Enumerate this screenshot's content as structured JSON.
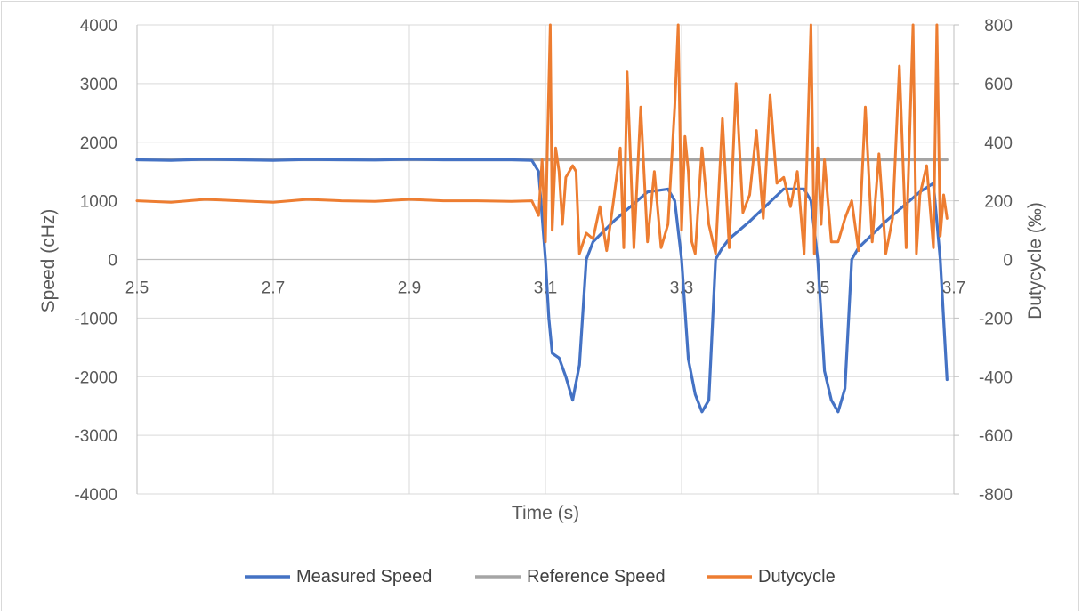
{
  "chart_data": {
    "type": "line",
    "title": "",
    "xlabel": "Time (s)",
    "ylabel": "Speed (cHz)",
    "y2label": "Dutycycle (‰)",
    "xlim": [
      2.5,
      3.7
    ],
    "ylim": [
      -4000,
      4000
    ],
    "y2lim": [
      -800,
      800
    ],
    "x_ticks": [
      "2.5",
      "2.7",
      "2.9",
      "3.1",
      "3.3",
      "3.5",
      "3.7"
    ],
    "y_ticks": [
      "4000",
      "3000",
      "2000",
      "1000",
      "0",
      "-1000",
      "-2000",
      "-3000",
      "-4000"
    ],
    "y2_ticks": [
      "800",
      "600",
      "400",
      "200",
      "0",
      "-200",
      "-400",
      "-600",
      "-800"
    ],
    "grid": true,
    "legend_position": "bottom",
    "series": [
      {
        "name": "Measured Speed",
        "axis": "left",
        "color": "#4472C4",
        "x": [
          2.5,
          2.55,
          2.6,
          2.65,
          2.7,
          2.75,
          2.8,
          2.85,
          2.9,
          2.95,
          3.0,
          3.05,
          3.08,
          3.09,
          3.1,
          3.105,
          3.11,
          3.12,
          3.13,
          3.14,
          3.15,
          3.16,
          3.17,
          3.2,
          3.25,
          3.28,
          3.29,
          3.3,
          3.31,
          3.32,
          3.33,
          3.34,
          3.35,
          3.36,
          3.37,
          3.4,
          3.45,
          3.48,
          3.49,
          3.5,
          3.51,
          3.52,
          3.53,
          3.54,
          3.55,
          3.56,
          3.6,
          3.65,
          3.67,
          3.68,
          3.69
        ],
        "y": [
          1700,
          1690,
          1710,
          1700,
          1690,
          1705,
          1700,
          1695,
          1710,
          1700,
          1700,
          1700,
          1690,
          1500,
          0,
          -1000,
          -1600,
          -1680,
          -2000,
          -2400,
          -1800,
          0,
          300,
          650,
          1150,
          1200,
          1000,
          0,
          -1700,
          -2300,
          -2600,
          -2400,
          0,
          200,
          350,
          650,
          1200,
          1200,
          1000,
          0,
          -1900,
          -2400,
          -2600,
          -2200,
          0,
          200,
          650,
          1150,
          1300,
          0,
          -2050
        ]
      },
      {
        "name": "Reference Speed",
        "axis": "left",
        "color": "#A5A5A5",
        "x": [
          2.5,
          3.69
        ],
        "y": [
          1700,
          1700
        ]
      },
      {
        "name": "Dutycycle",
        "axis": "right",
        "color": "#ED7D31",
        "x": [
          2.5,
          2.55,
          2.6,
          2.65,
          2.7,
          2.75,
          2.8,
          2.85,
          2.9,
          2.95,
          3.0,
          3.05,
          3.08,
          3.09,
          3.095,
          3.1,
          3.103,
          3.107,
          3.11,
          3.115,
          3.12,
          3.125,
          3.13,
          3.14,
          3.145,
          3.15,
          3.16,
          3.17,
          3.18,
          3.19,
          3.2,
          3.21,
          3.215,
          3.22,
          3.23,
          3.24,
          3.25,
          3.26,
          3.27,
          3.28,
          3.29,
          3.295,
          3.3,
          3.305,
          3.31,
          3.315,
          3.32,
          3.33,
          3.34,
          3.35,
          3.36,
          3.37,
          3.38,
          3.39,
          3.4,
          3.41,
          3.42,
          3.43,
          3.44,
          3.45,
          3.46,
          3.47,
          3.48,
          3.49,
          3.495,
          3.5,
          3.505,
          3.51,
          3.52,
          3.53,
          3.54,
          3.55,
          3.56,
          3.57,
          3.58,
          3.59,
          3.6,
          3.61,
          3.62,
          3.63,
          3.64,
          3.645,
          3.65,
          3.66,
          3.67,
          3.675,
          3.68,
          3.685,
          3.69
        ],
        "y": [
          200,
          195,
          205,
          200,
          195,
          205,
          200,
          198,
          205,
          200,
          200,
          198,
          200,
          150,
          340,
          60,
          400,
          800,
          100,
          380,
          300,
          120,
          280,
          320,
          300,
          20,
          90,
          70,
          180,
          30,
          200,
          380,
          40,
          640,
          40,
          520,
          60,
          300,
          40,
          120,
          520,
          800,
          100,
          420,
          300,
          60,
          20,
          380,
          120,
          20,
          480,
          40,
          600,
          160,
          220,
          440,
          140,
          560,
          260,
          280,
          180,
          300,
          20,
          800,
          20,
          380,
          120,
          340,
          60,
          60,
          140,
          200,
          30,
          520,
          60,
          360,
          20,
          140,
          660,
          40,
          800,
          20,
          220,
          320,
          40,
          800,
          80,
          220,
          140
        ]
      }
    ]
  },
  "legend": {
    "items": [
      {
        "label": "Measured Speed",
        "color": "#4472C4"
      },
      {
        "label": "Reference Speed",
        "color": "#A5A5A5"
      },
      {
        "label": "Dutycycle",
        "color": "#ED7D31"
      }
    ]
  }
}
